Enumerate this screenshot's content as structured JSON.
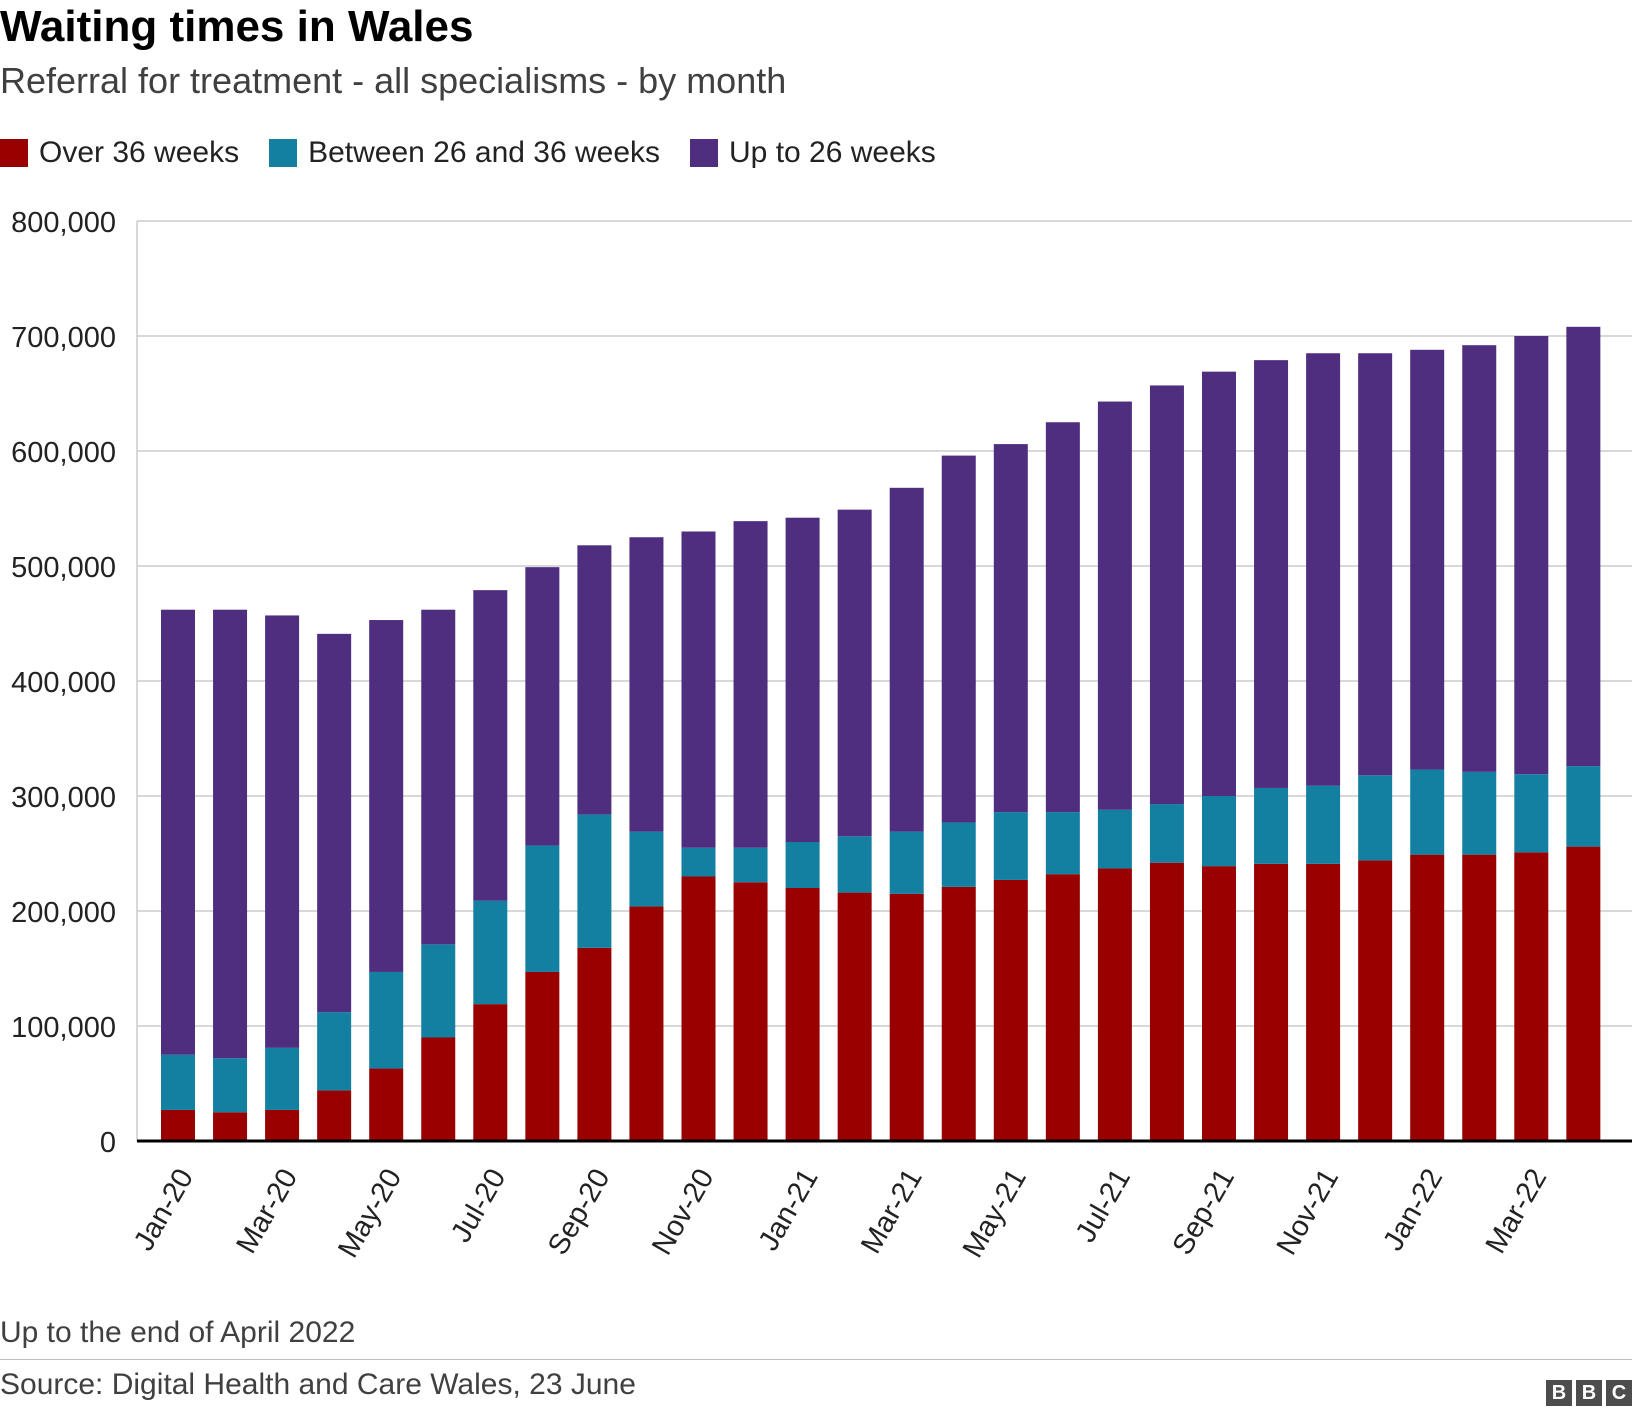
{
  "title": "Waiting times in Wales",
  "subtitle": "Referral for treatment - all specialisms - by month",
  "note": "Up to the end of April 2022",
  "source": "Source: Digital Health and Care Wales, 23 June",
  "logo": [
    "B",
    "B",
    "C"
  ],
  "colors": {
    "over36": "#990000",
    "between26and36": "#1380a1",
    "upto26": "#4f2d7f",
    "grid": "#cbcbcb",
    "axis": "#000000"
  },
  "chart_data": {
    "type": "bar",
    "stacked": true,
    "categories": [
      "Jan-20",
      "Feb-20",
      "Mar-20",
      "Apr-20",
      "May-20",
      "Jun-20",
      "Jul-20",
      "Aug-20",
      "Sep-20",
      "Oct-20",
      "Nov-20",
      "Dec-20",
      "Jan-21",
      "Feb-21",
      "Mar-21",
      "Apr-21",
      "May-21",
      "Jun-21",
      "Jul-21",
      "Aug-21",
      "Sep-21",
      "Oct-21",
      "Nov-21",
      "Dec-21",
      "Jan-22",
      "Feb-22",
      "Mar-22",
      "Apr-22"
    ],
    "tick_labels": [
      "Jan-20",
      "Mar-20",
      "May-20",
      "Jul-20",
      "Sep-20",
      "Nov-20",
      "Jan-21",
      "Mar-21",
      "May-21",
      "Jul-21",
      "Sep-21",
      "Nov-21",
      "Jan-22",
      "Mar-22"
    ],
    "yticks": [
      0,
      100000,
      200000,
      300000,
      400000,
      500000,
      600000,
      700000,
      800000
    ],
    "ytick_labels": [
      "0",
      "100,000",
      "200,000",
      "300,000",
      "400,000",
      "500,000",
      "600,000",
      "700,000",
      "800,000"
    ],
    "ylim": [
      0,
      800000
    ],
    "legend_position": "top-left",
    "grid": true,
    "series": [
      {
        "name": "Over 36 weeks",
        "color_key": "over36",
        "values": [
          27000,
          25000,
          27000,
          44000,
          63000,
          90000,
          119000,
          147000,
          168000,
          204000,
          230000,
          225000,
          220000,
          216000,
          215000,
          221000,
          227000,
          232000,
          237000,
          242000,
          239000,
          241000,
          241000,
          244000,
          249000,
          249000,
          251000,
          256000
        ]
      },
      {
        "name": "Between 26 and 36 weeks",
        "color_key": "between26and36",
        "values": [
          48000,
          47000,
          54000,
          68000,
          84000,
          81000,
          90000,
          110000,
          116000,
          65000,
          25000,
          30000,
          40000,
          49000,
          54000,
          56000,
          59000,
          54000,
          51000,
          51000,
          61000,
          66000,
          68000,
          74000,
          74000,
          72000,
          68000,
          70000
        ]
      },
      {
        "name": "Up to 26 weeks",
        "color_key": "upto26",
        "values": [
          387000,
          390000,
          376000,
          329000,
          306000,
          291000,
          270000,
          242000,
          234000,
          256000,
          275000,
          284000,
          282000,
          284000,
          299000,
          319000,
          320000,
          339000,
          355000,
          364000,
          369000,
          372000,
          376000,
          367000,
          365000,
          371000,
          381000,
          382000
        ]
      }
    ]
  }
}
